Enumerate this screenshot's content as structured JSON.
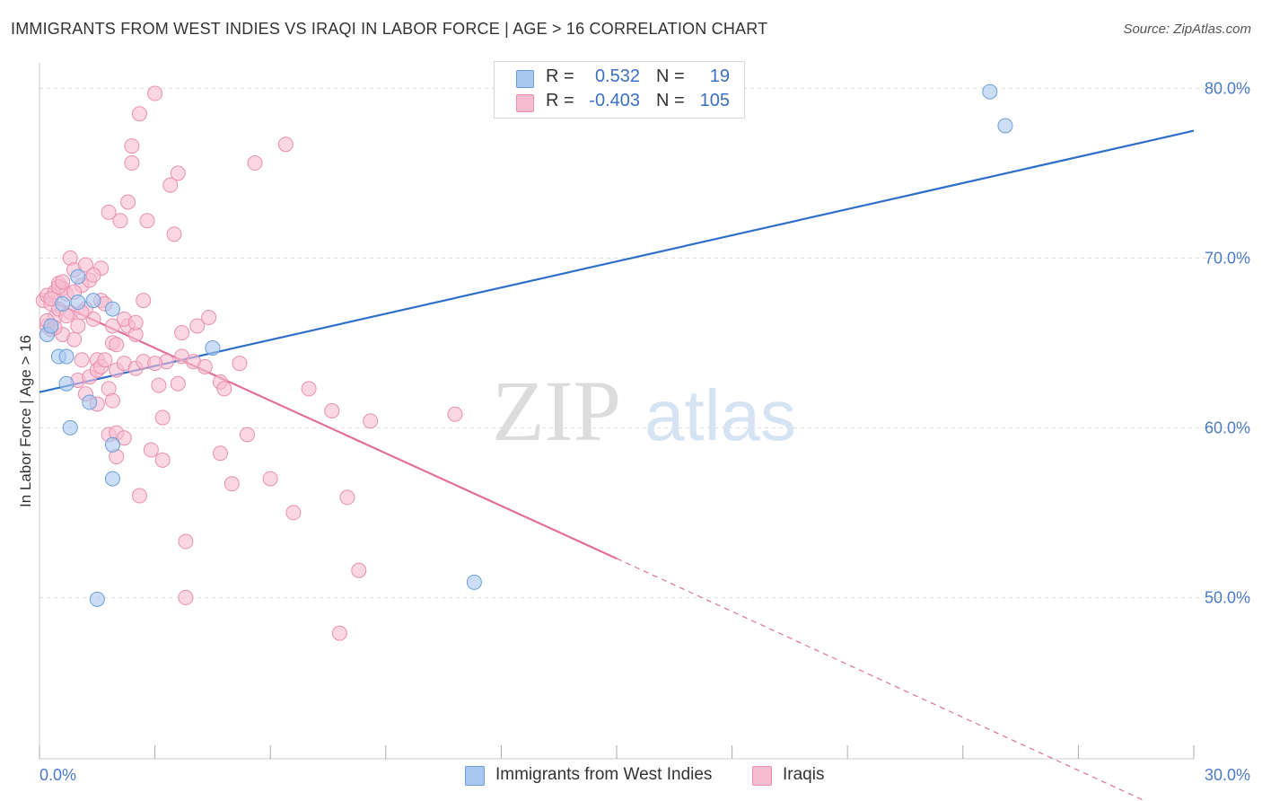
{
  "header": {
    "title": "IMMIGRANTS FROM WEST INDIES VS IRAQI IN LABOR FORCE | AGE > 16 CORRELATION CHART",
    "source": "Source: ZipAtlas.com"
  },
  "watermark": {
    "zip": "ZIP",
    "atlas": "atlas"
  },
  "legend": {
    "rows": [
      {
        "r_label": "R =",
        "r_value": "0.532",
        "n_label": "N =",
        "n_value": "19"
      },
      {
        "r_label": "R =",
        "r_value": "-0.403",
        "n_label": "N =",
        "n_value": "105"
      }
    ]
  },
  "bottom_legend": {
    "items": [
      {
        "label": "Immigrants from West Indies"
      },
      {
        "label": "Iraqis"
      }
    ]
  },
  "colors": {
    "blue_fill": "#a9c8f0",
    "blue_stroke": "#6a9fd8",
    "blue_line": "#2f6fca",
    "pink_fill": "#f7bcd0",
    "pink_stroke": "#e98fb0",
    "pink_line": "#e0709a",
    "grid": "#dddddd",
    "tick_text": "#4a7ac8"
  },
  "chart_data": {
    "type": "scatter",
    "title": "IMMIGRANTS FROM WEST INDIES VS IRAQI IN LABOR FORCE | AGE > 16 CORRELATION CHART",
    "xlabel": "",
    "ylabel": "In Labor Force | Age > 16",
    "xlim": [
      0,
      30
    ],
    "ylim": [
      40.5,
      81.5
    ],
    "x_tick_labels": [
      "0.0%",
      "30.0%"
    ],
    "y_ticks": [
      50,
      60,
      70,
      80
    ],
    "y_tick_labels": [
      "50.0%",
      "60.0%",
      "70.0%",
      "80.0%"
    ],
    "series": [
      {
        "name": "Immigrants from West Indies",
        "r": 0.532,
        "n": 19,
        "trend": {
          "x0": 0,
          "y0": 62.1,
          "x1": 30,
          "y1": 77.5
        },
        "points": [
          [
            0.2,
            65.5
          ],
          [
            0.3,
            66.0
          ],
          [
            0.5,
            64.2
          ],
          [
            0.6,
            67.3
          ],
          [
            0.7,
            64.2
          ],
          [
            0.7,
            62.6
          ],
          [
            0.8,
            60.0
          ],
          [
            1.0,
            67.4
          ],
          [
            1.0,
            68.9
          ],
          [
            1.3,
            61.5
          ],
          [
            1.4,
            67.5
          ],
          [
            1.9,
            67.0
          ],
          [
            1.9,
            59.0
          ],
          [
            1.9,
            57.0
          ],
          [
            1.5,
            49.9
          ],
          [
            4.5,
            64.7
          ],
          [
            11.3,
            50.9
          ],
          [
            24.7,
            79.8
          ],
          [
            25.1,
            77.8
          ]
        ]
      },
      {
        "name": "Iraqis",
        "r": -0.403,
        "n": 105,
        "trend": {
          "x0": 0,
          "y0": 67.8,
          "x1": 15,
          "y1": 52.3,
          "dash_to_x": 30,
          "dash_to_y": 36.7
        },
        "points": [
          [
            0.1,
            67.5
          ],
          [
            0.2,
            66.0
          ],
          [
            0.2,
            67.8
          ],
          [
            0.3,
            65.8
          ],
          [
            0.3,
            67.3
          ],
          [
            0.4,
            68.0
          ],
          [
            0.4,
            66.5
          ],
          [
            0.5,
            68.5
          ],
          [
            0.5,
            67.0
          ],
          [
            0.6,
            68.2
          ],
          [
            0.6,
            65.5
          ],
          [
            0.7,
            67.9
          ],
          [
            0.8,
            66.8
          ],
          [
            0.8,
            70.0
          ],
          [
            0.9,
            69.3
          ],
          [
            0.9,
            65.2
          ],
          [
            1.0,
            66.0
          ],
          [
            1.0,
            62.8
          ],
          [
            1.1,
            68.4
          ],
          [
            1.1,
            64.0
          ],
          [
            1.2,
            69.6
          ],
          [
            1.2,
            67.0
          ],
          [
            1.3,
            68.7
          ],
          [
            1.3,
            63.0
          ],
          [
            1.4,
            66.4
          ],
          [
            1.5,
            64.0
          ],
          [
            1.5,
            63.4
          ],
          [
            1.6,
            69.4
          ],
          [
            1.6,
            63.6
          ],
          [
            1.7,
            64.0
          ],
          [
            1.8,
            62.3
          ],
          [
            1.8,
            59.6
          ],
          [
            1.8,
            72.7
          ],
          [
            1.9,
            66.0
          ],
          [
            1.9,
            65.0
          ],
          [
            2.0,
            59.7
          ],
          [
            2.0,
            58.3
          ],
          [
            2.0,
            63.4
          ],
          [
            2.1,
            72.2
          ],
          [
            2.2,
            59.4
          ],
          [
            2.2,
            63.8
          ],
          [
            2.3,
            73.3
          ],
          [
            2.3,
            66.0
          ],
          [
            2.4,
            75.6
          ],
          [
            2.4,
            76.6
          ],
          [
            2.5,
            65.5
          ],
          [
            2.5,
            63.5
          ],
          [
            2.6,
            78.5
          ],
          [
            2.6,
            56.0
          ],
          [
            2.7,
            67.5
          ],
          [
            2.7,
            63.9
          ],
          [
            2.8,
            72.2
          ],
          [
            2.9,
            58.7
          ],
          [
            3.0,
            79.7
          ],
          [
            3.1,
            62.5
          ],
          [
            3.2,
            60.6
          ],
          [
            3.2,
            58.1
          ],
          [
            3.3,
            63.9
          ],
          [
            3.4,
            74.3
          ],
          [
            3.5,
            71.4
          ],
          [
            3.6,
            75.0
          ],
          [
            3.6,
            62.6
          ],
          [
            3.7,
            65.6
          ],
          [
            3.7,
            64.2
          ],
          [
            3.8,
            53.3
          ],
          [
            3.8,
            50.0
          ],
          [
            4.0,
            63.9
          ],
          [
            4.1,
            66.0
          ],
          [
            4.3,
            63.6
          ],
          [
            4.4,
            66.5
          ],
          [
            4.7,
            62.7
          ],
          [
            4.7,
            58.5
          ],
          [
            4.8,
            62.3
          ],
          [
            5.0,
            56.7
          ],
          [
            5.2,
            63.8
          ],
          [
            5.4,
            59.6
          ],
          [
            5.6,
            75.6
          ],
          [
            6.0,
            57.0
          ],
          [
            6.4,
            76.7
          ],
          [
            6.6,
            55.0
          ],
          [
            7.0,
            62.3
          ],
          [
            7.6,
            61.0
          ],
          [
            7.8,
            47.9
          ],
          [
            8.0,
            55.9
          ],
          [
            8.3,
            51.6
          ],
          [
            8.6,
            60.4
          ],
          [
            10.8,
            60.8
          ],
          [
            0.3,
            67.6
          ],
          [
            0.5,
            68.3
          ],
          [
            0.9,
            68.0
          ],
          [
            1.1,
            66.8
          ],
          [
            1.4,
            69.0
          ],
          [
            1.6,
            67.5
          ],
          [
            2.0,
            64.9
          ],
          [
            2.2,
            66.4
          ],
          [
            2.5,
            66.2
          ],
          [
            0.2,
            66.3
          ],
          [
            0.4,
            65.9
          ],
          [
            0.7,
            66.6
          ],
          [
            1.2,
            62.0
          ],
          [
            1.7,
            67.3
          ],
          [
            1.5,
            61.4
          ],
          [
            3.0,
            63.8
          ],
          [
            0.6,
            68.6
          ],
          [
            1.9,
            61.6
          ]
        ]
      }
    ]
  }
}
